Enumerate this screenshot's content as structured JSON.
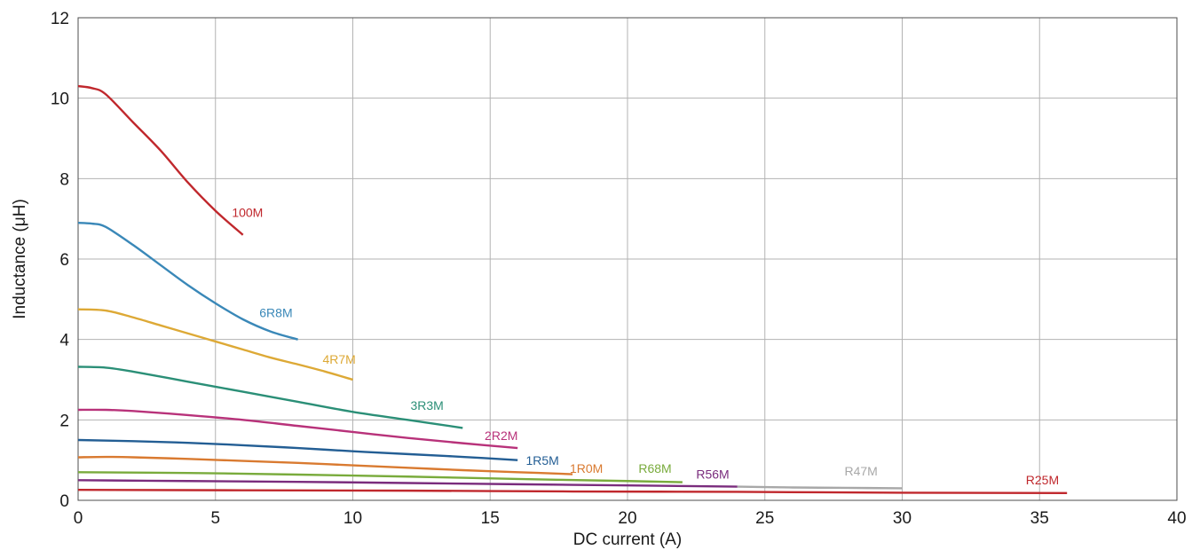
{
  "chart_data": {
    "type": "line",
    "title": "",
    "xlabel": "DC current (A)",
    "ylabel": "Inductance (μH)",
    "xlim": [
      0,
      40
    ],
    "ylim": [
      0,
      12
    ],
    "x_ticks": [
      0,
      5,
      10,
      15,
      20,
      25,
      30,
      35,
      40
    ],
    "y_ticks": [
      0,
      2,
      4,
      6,
      8,
      10,
      12
    ],
    "grid": true,
    "legend": "inline labels",
    "series": [
      {
        "name": "100M",
        "color": "#c0282d",
        "x": [
          0,
          0.5,
          1,
          2,
          3,
          4,
          5,
          6
        ],
        "y": [
          10.3,
          10.25,
          10.1,
          9.4,
          8.7,
          7.9,
          7.2,
          6.6
        ]
      },
      {
        "name": "6R8M",
        "color": "#3a88b8",
        "x": [
          0,
          0.5,
          1,
          2,
          3,
          4,
          5,
          6,
          7,
          8
        ],
        "y": [
          6.9,
          6.88,
          6.8,
          6.35,
          5.85,
          5.35,
          4.9,
          4.5,
          4.2,
          4.0
        ]
      },
      {
        "name": "4R7M",
        "color": "#dda936",
        "x": [
          0,
          1,
          2,
          3,
          4,
          5,
          6,
          7,
          8,
          9,
          10
        ],
        "y": [
          4.75,
          4.72,
          4.55,
          4.35,
          4.15,
          3.95,
          3.75,
          3.55,
          3.38,
          3.2,
          3.0
        ]
      },
      {
        "name": "3R3M",
        "color": "#2b8f77",
        "x": [
          0,
          1,
          2,
          4,
          6,
          8,
          10,
          12,
          14
        ],
        "y": [
          3.32,
          3.3,
          3.2,
          2.95,
          2.7,
          2.45,
          2.2,
          2.0,
          1.8
        ]
      },
      {
        "name": "2R2M",
        "color": "#b8327a",
        "x": [
          0,
          1,
          2,
          4,
          6,
          8,
          10,
          12,
          14,
          16
        ],
        "y": [
          2.25,
          2.25,
          2.22,
          2.12,
          2.0,
          1.85,
          1.7,
          1.55,
          1.42,
          1.3
        ]
      },
      {
        "name": "1R5M",
        "color": "#235e94",
        "x": [
          0,
          2,
          4,
          6,
          8,
          10,
          12,
          14,
          16
        ],
        "y": [
          1.5,
          1.47,
          1.43,
          1.37,
          1.3,
          1.22,
          1.15,
          1.08,
          1.0
        ]
      },
      {
        "name": "1R0M",
        "color": "#d97a30",
        "x": [
          0,
          1,
          2,
          4,
          6,
          8,
          10,
          12,
          14,
          16,
          18
        ],
        "y": [
          1.07,
          1.08,
          1.07,
          1.03,
          0.98,
          0.93,
          0.87,
          0.81,
          0.75,
          0.7,
          0.65
        ]
      },
      {
        "name": "R68M",
        "color": "#79ab3c",
        "x": [
          0,
          4,
          8,
          12,
          16,
          20,
          22
        ],
        "y": [
          0.7,
          0.68,
          0.64,
          0.59,
          0.53,
          0.48,
          0.45
        ]
      },
      {
        "name": "R56M",
        "color": "#7a2c7d",
        "x": [
          0,
          4,
          8,
          12,
          16,
          20,
          24
        ],
        "y": [
          0.5,
          0.48,
          0.46,
          0.43,
          0.4,
          0.37,
          0.34
        ]
      },
      {
        "name": "R47M",
        "color": "#a8a8a8",
        "x": [
          24,
          26,
          28,
          30
        ],
        "y": [
          0.34,
          0.32,
          0.31,
          0.3
        ]
      },
      {
        "name": "R25M",
        "color": "#c0282d",
        "x": [
          0,
          6,
          12,
          18,
          24,
          30,
          36
        ],
        "y": [
          0.26,
          0.25,
          0.24,
          0.22,
          0.21,
          0.19,
          0.18
        ]
      }
    ],
    "annotations": [
      {
        "text": "100M",
        "x": 5.6,
        "y": 7.05,
        "color": "#c0282d"
      },
      {
        "text": "6R8M",
        "x": 6.6,
        "y": 4.55,
        "color": "#3a88b8"
      },
      {
        "text": "4R7M",
        "x": 8.9,
        "y": 3.4,
        "color": "#dda936"
      },
      {
        "text": "3R3M",
        "x": 12.1,
        "y": 2.25,
        "color": "#2b8f77"
      },
      {
        "text": "2R2M",
        "x": 14.8,
        "y": 1.5,
        "color": "#b8327a"
      },
      {
        "text": "1R5M",
        "x": 16.3,
        "y": 0.88,
        "color": "#235e94"
      },
      {
        "text": "1R0M",
        "x": 17.9,
        "y": 0.68,
        "color": "#d97a30"
      },
      {
        "text": "R68M",
        "x": 20.4,
        "y": 0.68,
        "color": "#79ab3c"
      },
      {
        "text": "R56M",
        "x": 22.5,
        "y": 0.54,
        "color": "#7a2c7d"
      },
      {
        "text": "R47M",
        "x": 27.9,
        "y": 0.62,
        "color": "#a8a8a8"
      },
      {
        "text": "R25M",
        "x": 34.5,
        "y": 0.4,
        "color": "#c0282d"
      }
    ]
  }
}
